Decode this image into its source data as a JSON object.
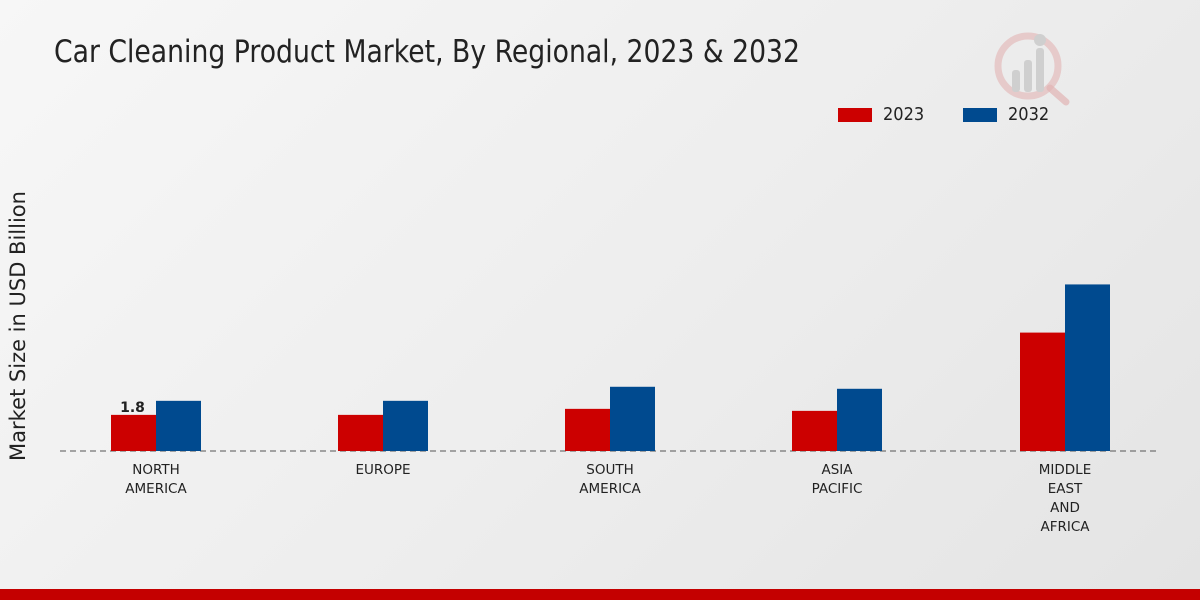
{
  "chart_data": {
    "type": "bar",
    "title": "Car Cleaning Product Market, By Regional, 2023 & 2032",
    "xlabel": "",
    "ylabel": "Market Size in USD Billion",
    "categories": [
      "NORTH\nAMERICA",
      "EUROPE",
      "SOUTH\nAMERICA",
      "ASIA\nPACIFIC",
      "MIDDLE\nEAST\nAND\nAFRICA"
    ],
    "series": [
      {
        "name": "2023",
        "color": "#cc0000",
        "values": [
          1.8,
          1.8,
          2.1,
          2.0,
          5.9
        ]
      },
      {
        "name": "2032",
        "color": "#004a8f",
        "values": [
          2.5,
          2.5,
          3.2,
          3.1,
          8.3
        ]
      }
    ],
    "data_labels": [
      {
        "series": 0,
        "index": 0,
        "text": "1.8"
      }
    ],
    "ylim": [
      0,
      14.5
    ],
    "grid": false,
    "legend_position": "top-right"
  },
  "colors": {
    "footer": "#c40000",
    "logo": "#d9a3a3"
  },
  "icons": {
    "logo": "brand-logo-icon"
  }
}
